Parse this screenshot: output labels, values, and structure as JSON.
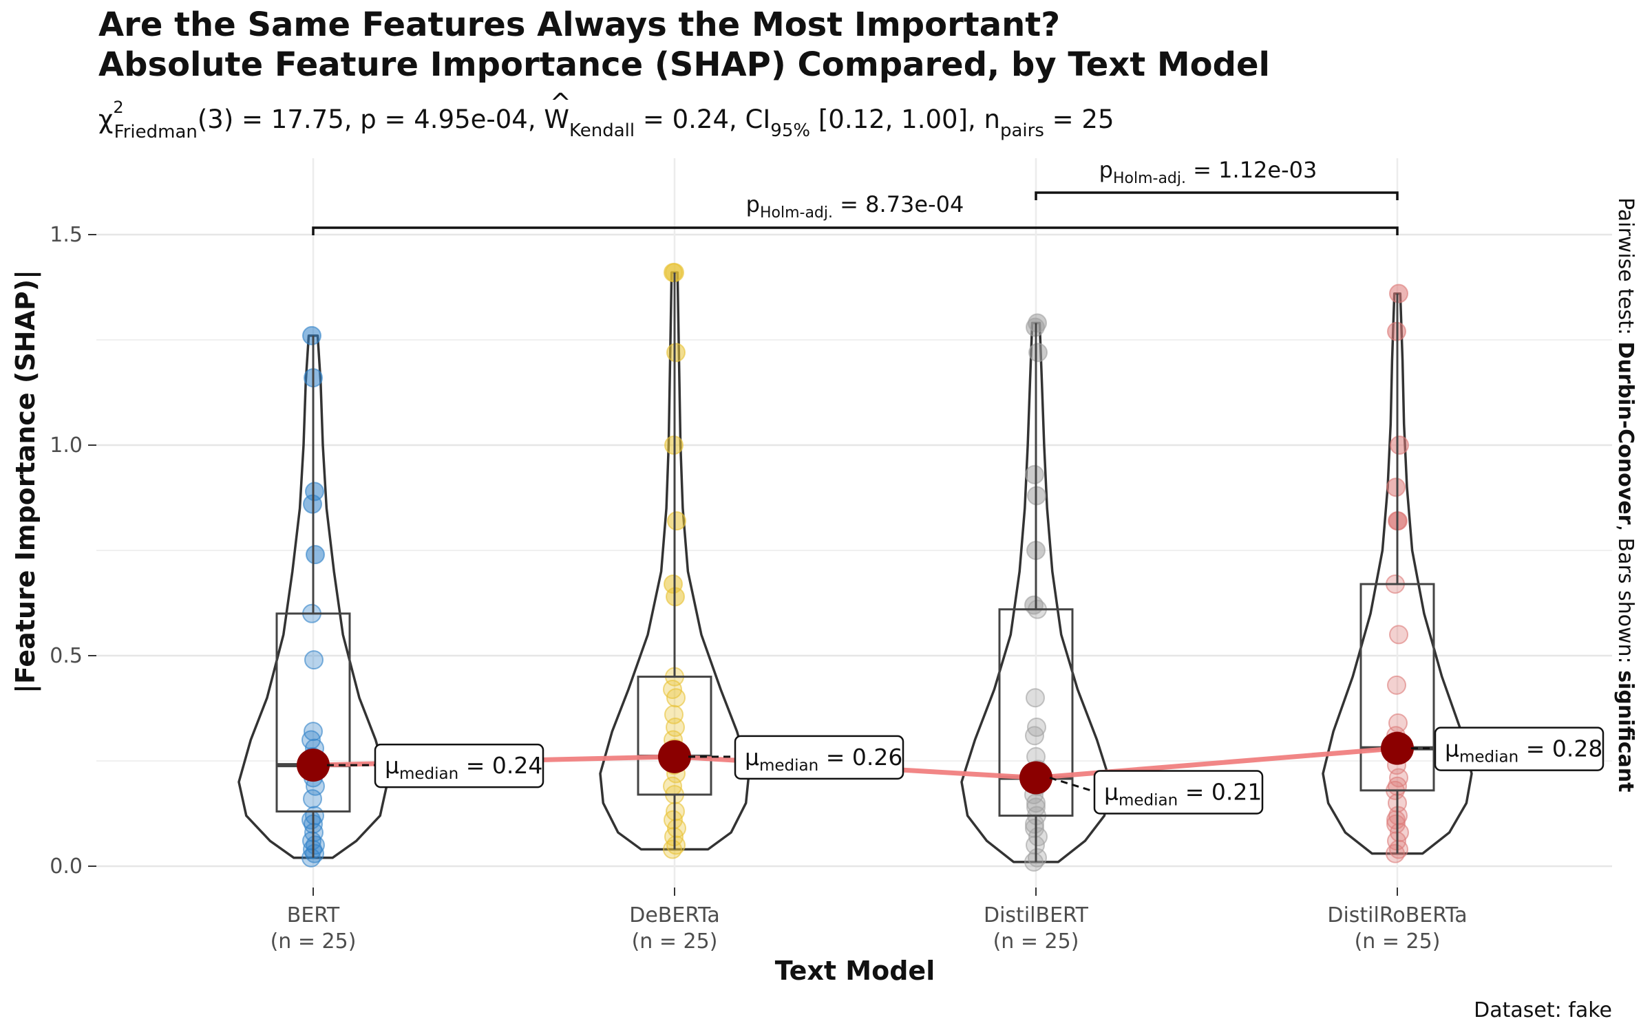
{
  "title_line1": "Are the Same Features Always the Most Important?",
  "title_line2": "Absolute Feature Importance (SHAP) Compared, by Text Model",
  "subtitle": {
    "chi": "χ",
    "chi_sup": "2",
    "chi_sub": "Friedman",
    "p1": "(3) = 17.75, p = 4.95e-04, ",
    "w": "W",
    "w_sub": "Kendall",
    "p2": " = 0.24, CI",
    "ci_sub": "95%",
    "p3": " [0.12, 1.00], n",
    "n_sub": "pairs",
    "p4": " = 25"
  },
  "ylabel": "|Feature Importance (SHAP)|",
  "xlabel": "Text Model",
  "caption": "Dataset:  fake",
  "side_label": {
    "part1": "Pairwise test: ",
    "part2": "Durbin-Conover",
    "part3": ", Bars shown: ",
    "part4": "significant"
  },
  "comparisons": [
    {
      "from": "DistilBERT",
      "to": "DistilRoBERTa",
      "p_main": "p",
      "p_sub": "Holm-adj.",
      "p_val": " = 1.12e-03"
    },
    {
      "from": "BERT",
      "to": "DistilRoBERTa",
      "p_main": "p",
      "p_sub": "Holm-adj.",
      "p_val": " = 8.73e-04"
    }
  ],
  "chart_data": {
    "type": "violin",
    "ylim": [
      -0.06,
      1.65
    ],
    "yticks": [
      0.0,
      0.5,
      1.0,
      1.5
    ],
    "ytick_labels": [
      "0.0",
      "0.5",
      "1.0",
      "1.5"
    ],
    "grid": true,
    "categories": [
      {
        "name": "BERT",
        "n_label": "(n = 25)",
        "color": "#3182c8",
        "median": 0.24,
        "median_label": "0.24",
        "q1": 0.13,
        "q3": 0.6,
        "whisker_low": 0.02,
        "whisker_high": 1.26,
        "points": [
          0.02,
          0.03,
          0.04,
          0.05,
          0.06,
          0.08,
          0.1,
          0.11,
          0.12,
          0.16,
          0.19,
          0.21,
          0.23,
          0.24,
          0.26,
          0.28,
          0.3,
          0.32,
          0.49,
          0.6,
          0.74,
          0.86,
          0.89,
          1.16,
          1.26
        ],
        "violin": [
          [
            0.02,
            0.26
          ],
          [
            0.06,
            0.58
          ],
          [
            0.12,
            0.9
          ],
          [
            0.2,
            1.0
          ],
          [
            0.3,
            0.84
          ],
          [
            0.4,
            0.62
          ],
          [
            0.55,
            0.4
          ],
          [
            0.7,
            0.28
          ],
          [
            0.85,
            0.18
          ],
          [
            1.0,
            0.13
          ],
          [
            1.15,
            0.1
          ],
          [
            1.26,
            0.06
          ]
        ]
      },
      {
        "name": "DeBERTa",
        "n_label": "(n = 25)",
        "color": "#e8c234",
        "median": 0.26,
        "median_label": "0.26",
        "q1": 0.17,
        "q3": 0.45,
        "whisker_low": 0.04,
        "whisker_high": 1.41,
        "points": [
          0.04,
          0.05,
          0.07,
          0.09,
          0.11,
          0.13,
          0.17,
          0.19,
          0.22,
          0.24,
          0.26,
          0.28,
          0.3,
          0.33,
          0.36,
          0.4,
          0.42,
          0.45,
          0.64,
          0.67,
          0.82,
          1.0,
          1.22,
          1.41,
          1.41
        ],
        "violin": [
          [
            0.04,
            0.45
          ],
          [
            0.08,
            0.76
          ],
          [
            0.15,
            0.96
          ],
          [
            0.22,
            1.0
          ],
          [
            0.32,
            0.84
          ],
          [
            0.42,
            0.62
          ],
          [
            0.55,
            0.36
          ],
          [
            0.7,
            0.18
          ],
          [
            0.85,
            0.11
          ],
          [
            1.0,
            0.08
          ],
          [
            1.2,
            0.06
          ],
          [
            1.41,
            0.04
          ]
        ]
      },
      {
        "name": "DistilBERT",
        "n_label": "(n = 25)",
        "color": "#a0a0a0",
        "median": 0.21,
        "median_label": "0.21",
        "q1": 0.12,
        "q3": 0.61,
        "whisker_low": 0.01,
        "whisker_high": 1.29,
        "points": [
          0.01,
          0.02,
          0.05,
          0.07,
          0.1,
          0.12,
          0.15,
          0.17,
          0.19,
          0.21,
          0.23,
          0.26,
          0.31,
          0.33,
          0.4,
          0.61,
          0.62,
          0.75,
          0.88,
          0.93,
          1.22,
          1.28,
          1.29,
          0.14,
          0.09
        ],
        "violin": [
          [
            0.01,
            0.3
          ],
          [
            0.06,
            0.66
          ],
          [
            0.12,
            0.92
          ],
          [
            0.2,
            1.0
          ],
          [
            0.3,
            0.82
          ],
          [
            0.42,
            0.56
          ],
          [
            0.55,
            0.34
          ],
          [
            0.7,
            0.22
          ],
          [
            0.85,
            0.15
          ],
          [
            1.0,
            0.11
          ],
          [
            1.15,
            0.08
          ],
          [
            1.29,
            0.05
          ]
        ]
      },
      {
        "name": "DistilRoBERTa",
        "n_label": "(n = 25)",
        "color": "#dc7a78",
        "median": 0.28,
        "median_label": "0.28",
        "q1": 0.18,
        "q3": 0.67,
        "whisker_low": 0.03,
        "whisker_high": 1.36,
        "points": [
          0.03,
          0.04,
          0.06,
          0.08,
          0.1,
          0.12,
          0.15,
          0.18,
          0.21,
          0.24,
          0.27,
          0.29,
          0.31,
          0.34,
          0.43,
          0.55,
          0.67,
          0.82,
          0.82,
          0.9,
          1.0,
          1.27,
          1.36,
          0.19,
          0.11
        ],
        "violin": [
          [
            0.03,
            0.34
          ],
          [
            0.08,
            0.7
          ],
          [
            0.15,
            0.93
          ],
          [
            0.22,
            1.0
          ],
          [
            0.32,
            0.86
          ],
          [
            0.45,
            0.6
          ],
          [
            0.6,
            0.36
          ],
          [
            0.75,
            0.2
          ],
          [
            0.9,
            0.13
          ],
          [
            1.05,
            0.09
          ],
          [
            1.2,
            0.07
          ],
          [
            1.36,
            0.04
          ]
        ]
      }
    ],
    "median_label_prefix": "μ",
    "median_label_sub": "median",
    "median_label_eq": " = "
  }
}
